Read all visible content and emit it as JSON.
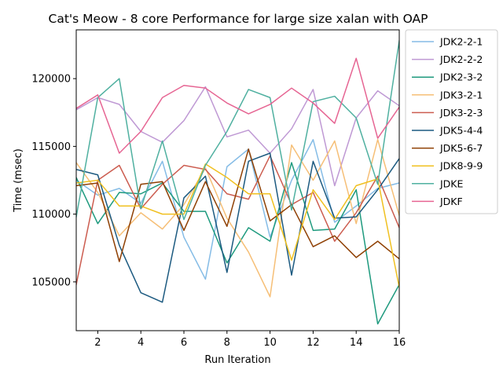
{
  "chart_data": {
    "type": "line",
    "title": "Cat's Meow - 8 core Performance for large size xalan with OAP",
    "xlabel": "Run Iteration",
    "ylabel": "Time (msec)",
    "xlim": [
      1,
      16
    ],
    "ylim": [
      101400,
      123600
    ],
    "x": [
      1,
      2,
      3,
      4,
      5,
      6,
      7,
      8,
      9,
      10,
      11,
      12,
      13,
      14,
      15,
      16
    ],
    "xticks": [
      2,
      4,
      6,
      8,
      10,
      12,
      14,
      16
    ],
    "xtick_labels": [
      "2",
      "4",
      "6",
      "8",
      "10",
      "12",
      "14",
      "16"
    ],
    "yticks": [
      105000,
      110000,
      115000,
      120000
    ],
    "ytick_labels": [
      "105000",
      "110000",
      "115000",
      "120000"
    ],
    "grid": false,
    "legend_placement": "outside-right",
    "series": [
      {
        "name": "JDK2-2-1",
        "color": "#85bce6",
        "values": [
          112500,
          111400,
          111900,
          110800,
          113900,
          108300,
          105200,
          113500,
          114800,
          108300,
          112500,
          115500,
          109400,
          110600,
          111900,
          112300
        ]
      },
      {
        "name": "JDK2-2-2",
        "color": "#bf99d4",
        "values": [
          117700,
          118600,
          118100,
          116100,
          115300,
          116900,
          119400,
          115700,
          116200,
          114500,
          116300,
          119200,
          112100,
          117100,
          119100,
          118000
        ]
      },
      {
        "name": "JDK2-3-2",
        "color": "#1e9a7e",
        "values": [
          112700,
          109300,
          111600,
          111500,
          112300,
          110200,
          110200,
          106400,
          109000,
          108000,
          113800,
          108800,
          108900,
          111800,
          101900,
          104800
        ]
      },
      {
        "name": "JDK3-2-1",
        "color": "#f6bf77",
        "values": [
          113800,
          111600,
          108400,
          110100,
          108900,
          110700,
          113400,
          109700,
          107200,
          103900,
          115100,
          112500,
          115400,
          109300,
          115500,
          109900
        ]
      },
      {
        "name": "JDK3-2-3",
        "color": "#cc5d50",
        "values": [
          104800,
          112500,
          113600,
          110400,
          112200,
          113600,
          113300,
          111500,
          111100,
          114300,
          110700,
          111600,
          108000,
          110100,
          112800,
          109000
        ]
      },
      {
        "name": "JDK5-4-4",
        "color": "#1c5a80",
        "values": [
          113300,
          112900,
          107700,
          104200,
          103500,
          111200,
          112800,
          105700,
          113900,
          114500,
          105500,
          113900,
          109700,
          109800,
          111800,
          114100
        ]
      },
      {
        "name": "JDK5-6-7",
        "color": "#8f4004",
        "values": [
          112100,
          112300,
          106500,
          112200,
          112400,
          108800,
          112400,
          109100,
          114800,
          109500,
          110700,
          107600,
          108400,
          106800,
          108000,
          106700
        ]
      },
      {
        "name": "JDK8-9-9",
        "color": "#f0c020",
        "values": [
          112300,
          112500,
          110600,
          110600,
          110000,
          110000,
          113700,
          112700,
          111500,
          111500,
          106600,
          111800,
          109600,
          112100,
          112600,
          104600
        ]
      },
      {
        "name": "JDKE",
        "color": "#4fb0a0",
        "values": [
          109800,
          118600,
          120000,
          110400,
          115400,
          109600,
          113600,
          116100,
          119200,
          118600,
          110300,
          118300,
          118700,
          117100,
          112200,
          122800
        ]
      },
      {
        "name": "JDKF",
        "color": "#e66593",
        "values": [
          117800,
          118800,
          114500,
          116100,
          118600,
          119500,
          119300,
          118200,
          117400,
          118100,
          119300,
          118200,
          116700,
          121500,
          115600,
          117900
        ]
      }
    ]
  }
}
